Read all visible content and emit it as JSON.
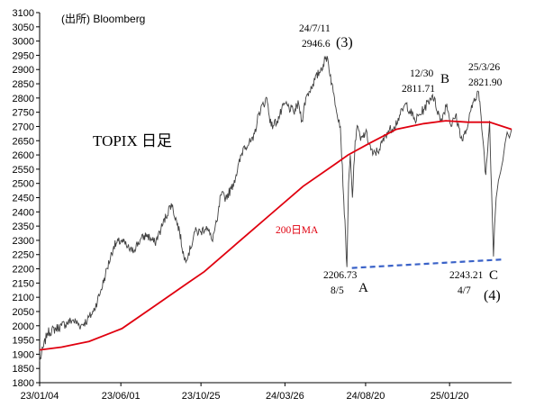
{
  "chart_data": {
    "type": "line",
    "source": "(出所)  Bloomberg",
    "title": "TOPIX 日足",
    "ma_label": "200日MA",
    "ylim": [
      1800,
      3100
    ],
    "y_ticks": [
      1800,
      1850,
      1900,
      1950,
      2000,
      2050,
      2100,
      2150,
      2200,
      2250,
      2300,
      2350,
      2400,
      2450,
      2500,
      2550,
      2600,
      2650,
      2700,
      2750,
      2800,
      2850,
      2900,
      2950,
      3000,
      3050,
      3100
    ],
    "x_ticks": [
      "23/01/04",
      "23/06/01",
      "23/10/25",
      "24/03/26",
      "24/08/20",
      "25/01/20"
    ],
    "x_range_days": [
      0,
      860
    ],
    "x_tick_days": [
      0,
      148,
      294,
      447,
      594,
      747
    ],
    "grid": false,
    "legend": "none",
    "colors": {
      "price": "#404040",
      "ma": "#e0000f",
      "support": "#3a62c8"
    },
    "series": [
      {
        "key": "price",
        "x_days": [
          0,
          14,
          40,
          60,
          75,
          87,
          98,
          111,
          120,
          135,
          149,
          158,
          168,
          183,
          195,
          210,
          221,
          240,
          255,
          264,
          275,
          282,
          294,
          304,
          314,
          324,
          330,
          339,
          349,
          358,
          372,
          389,
          400,
          414,
          422,
          433,
          447,
          463,
          472,
          478,
          485,
          498,
          512,
          524,
          535,
          548,
          560,
          563,
          566,
          570,
          575,
          580,
          585,
          594,
          607,
          619,
          633,
          646,
          657,
          668,
          684,
          700,
          716,
          731,
          742,
          750,
          758,
          770,
          780,
          782,
          792,
          800,
          808,
          813,
          820,
          827,
          829,
          832,
          836,
          840,
          844,
          848,
          852,
          856,
          860
        ],
        "values": [
          1875,
          1975,
          2000,
          2020,
          2000,
          2020,
          2050,
          2120,
          2180,
          2280,
          2300,
          2280,
          2260,
          2300,
          2320,
          2290,
          2340,
          2430,
          2330,
          2230,
          2270,
          2330,
          2330,
          2350,
          2300,
          2370,
          2460,
          2450,
          2480,
          2530,
          2630,
          2650,
          2750,
          2800,
          2700,
          2720,
          2780,
          2750,
          2780,
          2720,
          2800,
          2850,
          2900,
          2947,
          2820,
          2700,
          2206,
          2500,
          2600,
          2450,
          2650,
          2700,
          2650,
          2680,
          2600,
          2620,
          2680,
          2700,
          2740,
          2780,
          2720,
          2760,
          2812,
          2720,
          2780,
          2700,
          2740,
          2650,
          2700,
          2720,
          2800,
          2822,
          2650,
          2530,
          2720,
          2243,
          2350,
          2450,
          2510,
          2540,
          2580,
          2640,
          2680,
          2660,
          2690
        ]
      },
      {
        "key": "ma",
        "x_days": [
          0,
          40,
          90,
          150,
          210,
          270,
          300,
          360,
          420,
          480,
          540,
          562,
          600,
          650,
          700,
          740,
          780,
          820,
          860
        ],
        "values": [
          1915,
          1925,
          1945,
          1990,
          2070,
          2150,
          2190,
          2290,
          2390,
          2490,
          2570,
          2600,
          2640,
          2690,
          2710,
          2720,
          2715,
          2715,
          2690
        ]
      }
    ],
    "support_line": {
      "x_days": [
        569,
        846
      ],
      "values": [
        2203,
        2233
      ]
    },
    "annotations": [
      {
        "key": "peak_date",
        "text": "24/7/11"
      },
      {
        "key": "peak_value",
        "text": "2946.6"
      },
      {
        "key": "wave_3",
        "text": "(3)"
      },
      {
        "key": "b_date",
        "text": "12/30"
      },
      {
        "key": "b_value",
        "text": "2811.71"
      },
      {
        "key": "wave_b",
        "text": "B"
      },
      {
        "key": "mar_date",
        "text": "25/3/26"
      },
      {
        "key": "mar_value",
        "text": "2821.90"
      },
      {
        "key": "a_value",
        "text": "2206.73"
      },
      {
        "key": "a_date",
        "text": "8/5"
      },
      {
        "key": "wave_a",
        "text": "A"
      },
      {
        "key": "c_value",
        "text": "2243.21"
      },
      {
        "key": "c_date",
        "text": "4/7"
      },
      {
        "key": "wave_c",
        "text": "C"
      },
      {
        "key": "wave_4",
        "text": "(4)"
      }
    ]
  }
}
